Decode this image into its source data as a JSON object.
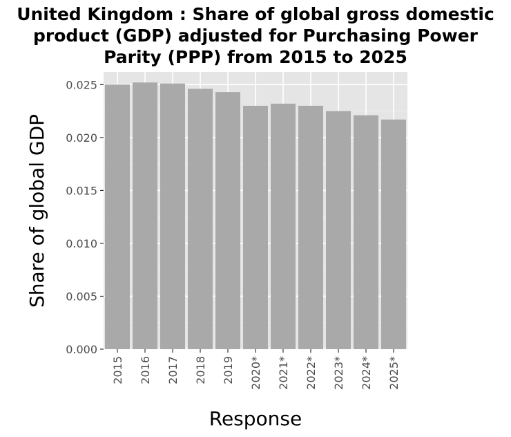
{
  "chart_data": {
    "type": "bar",
    "title_lines": [
      "United Kingdom : Share of global gross domestic",
      "product (GDP) adjusted for Purchasing Power",
      "Parity (PPP) from 2015 to 2025"
    ],
    "xlabel": "Response",
    "ylabel": "Share of global GDP",
    "categories": [
      "2015",
      "2016",
      "2017",
      "2018",
      "2019",
      "2020*",
      "2021*",
      "2022*",
      "2023*",
      "2024*",
      "2025*"
    ],
    "values": [
      0.025,
      0.0252,
      0.0251,
      0.0246,
      0.0243,
      0.023,
      0.0232,
      0.023,
      0.0225,
      0.0221,
      0.0217
    ],
    "ylim": [
      0,
      0.0262
    ],
    "yticks": [
      0.0,
      0.005,
      0.01,
      0.015,
      0.02,
      0.025
    ],
    "ytick_labels": [
      "0.000",
      "0.005",
      "0.010",
      "0.015",
      "0.020",
      "0.025"
    ],
    "grid": true,
    "colors": {
      "bar": "#a9a9a9",
      "panel": "#e5e5e5",
      "grid_major": "#ffffff",
      "grid_minor": "#f2f2f2",
      "tick_text": "#4d4d4d"
    }
  }
}
